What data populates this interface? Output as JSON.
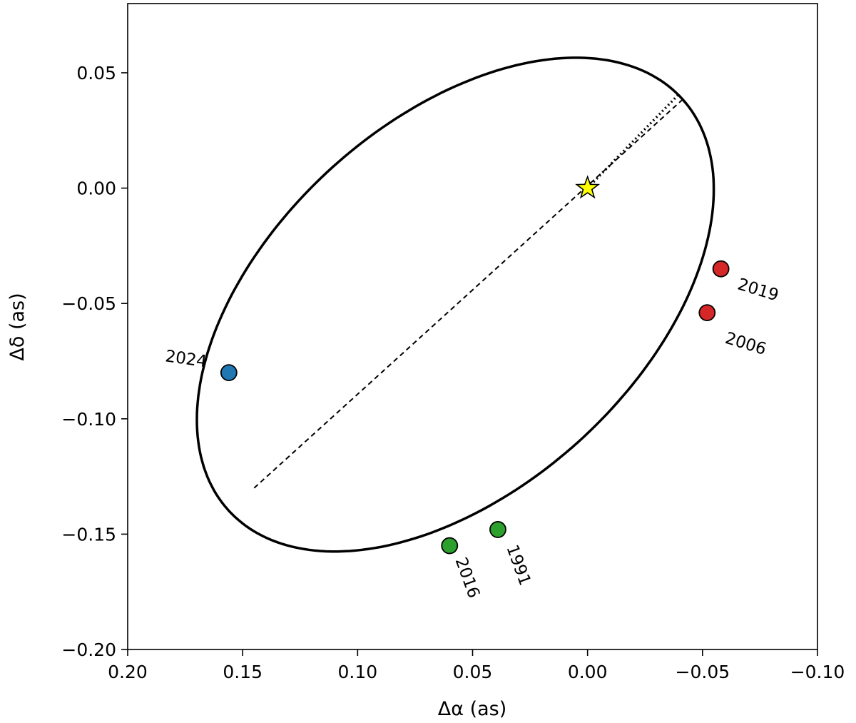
{
  "chart_data": {
    "type": "scatter",
    "title": "",
    "xlabel": "Δα (as)",
    "ylabel": "Δδ (as)",
    "xlim": [
      0.2,
      -0.1
    ],
    "ylim": [
      -0.2,
      0.08
    ],
    "x_inverted": true,
    "xticks": [
      0.2,
      0.15,
      0.1,
      0.05,
      0.0,
      -0.05,
      -0.1
    ],
    "xtick_labels": [
      "0.20",
      "0.15",
      "0.10",
      "0.05",
      "0.00",
      "−0.05",
      "−0.10"
    ],
    "yticks": [
      0.05,
      0.0,
      -0.05,
      -0.1,
      -0.15,
      -0.2
    ],
    "ytick_labels": [
      "0.05",
      "0.00",
      "−0.05",
      "−0.10",
      "−0.15",
      "−0.20"
    ],
    "grid": false,
    "orbit": {
      "center": [
        0.0575,
        -0.0505
      ],
      "semi_major": 0.133,
      "semi_minor": 0.08,
      "position_angle_deg": -42,
      "line_color": "#000000"
    },
    "line_of_nodes": {
      "from": [
        0.145,
        -0.13
      ],
      "to": [
        -0.042,
        0.039
      ],
      "style": "dashed"
    },
    "periastron_segment": {
      "from": [
        0.0,
        0.0
      ],
      "to": [
        -0.04,
        0.041
      ],
      "style": "dotted"
    },
    "star": {
      "x": 0.0,
      "y": 0.0,
      "color": "#ffff00"
    },
    "points": [
      {
        "label": "2019",
        "x": -0.058,
        "y": -0.035,
        "color": "#d62728",
        "label_angle": 17
      },
      {
        "label": "2006",
        "x": -0.052,
        "y": -0.054,
        "color": "#d62728",
        "label_angle": 17
      },
      {
        "label": "2024",
        "x": 0.156,
        "y": -0.08,
        "color": "#1f77b4",
        "label_angle": 8
      },
      {
        "label": "2016",
        "x": 0.06,
        "y": -0.155,
        "color": "#2ca02c",
        "label_angle": 70
      },
      {
        "label": "1991",
        "x": 0.039,
        "y": -0.148,
        "color": "#2ca02c",
        "label_angle": 70
      }
    ]
  }
}
